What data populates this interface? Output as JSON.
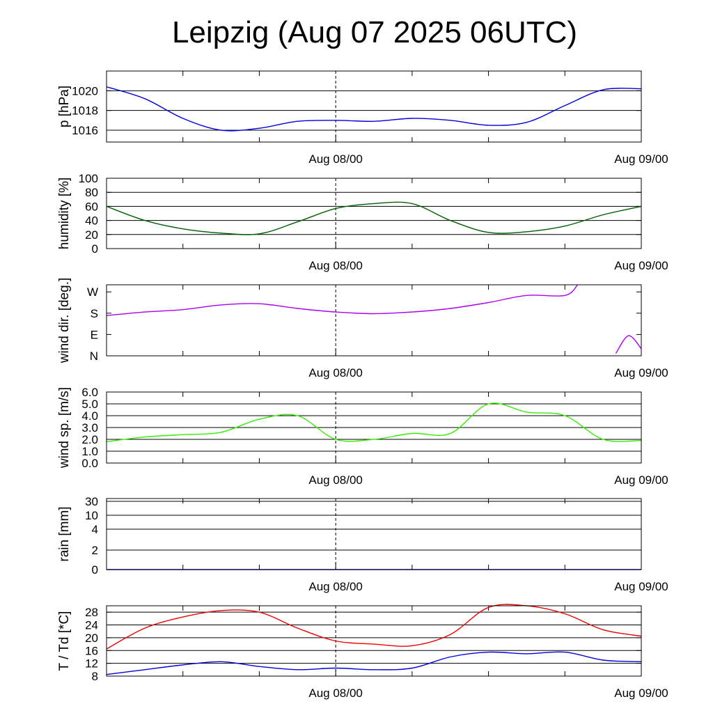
{
  "title": "Leipzig (Aug 07 2025 06UTC)",
  "x_tick_labels": [
    "Aug 08/00",
    "Aug 09/00"
  ],
  "chart_data": [
    {
      "type": "line",
      "ylabel": "p [hPa]",
      "ylim": [
        1014.8,
        1022
      ],
      "yticks": [
        1016,
        1018,
        1020
      ],
      "ytick_labels": [
        "1016",
        "1018",
        "1020"
      ],
      "grid": true,
      "x": [
        "Aug 07 06:00",
        "Aug 07 09:00",
        "Aug 07 12:00",
        "Aug 07 15:00",
        "Aug 07 18:00",
        "Aug 07 21:00",
        "Aug 08 00:00",
        "Aug 08 03:00",
        "Aug 08 06:00",
        "Aug 08 09:00",
        "Aug 08 12:00",
        "Aug 08 15:00",
        "Aug 08 18:00",
        "Aug 08 21:00",
        "Aug 09 00:00"
      ],
      "series": [
        {
          "color": "#0000dd",
          "values": [
            1020.4,
            1019.2,
            1017.2,
            1016.0,
            1016.2,
            1016.9,
            1017.0,
            1016.9,
            1017.2,
            1017.0,
            1016.5,
            1016.8,
            1018.5,
            1020.1,
            1020.2
          ]
        }
      ]
    },
    {
      "type": "line",
      "ylabel": "humidity [%]",
      "ylim": [
        0,
        100
      ],
      "yticks": [
        0,
        20,
        40,
        60,
        80,
        100
      ],
      "ytick_labels": [
        "0",
        "20",
        "40",
        "60",
        "80",
        "100"
      ],
      "grid": true,
      "x": [
        "Aug 07 06:00",
        "Aug 07 09:00",
        "Aug 07 12:00",
        "Aug 07 15:00",
        "Aug 07 18:00",
        "Aug 07 21:00",
        "Aug 08 00:00",
        "Aug 08 03:00",
        "Aug 08 06:00",
        "Aug 08 09:00",
        "Aug 08 12:00",
        "Aug 08 15:00",
        "Aug 08 18:00",
        "Aug 08 21:00",
        "Aug 09 00:00"
      ],
      "series": [
        {
          "color": "#005f00",
          "values": [
            60,
            40,
            28,
            22,
            21,
            38,
            57,
            64,
            64,
            40,
            23,
            24,
            32,
            48,
            60
          ]
        }
      ]
    },
    {
      "type": "line",
      "ylabel": "wind dir. [deg.]",
      "ylim": [
        0,
        300
      ],
      "yticks": [
        0,
        90,
        180,
        270
      ],
      "ytick_labels": [
        "N",
        "E",
        "S",
        "W"
      ],
      "grid": false,
      "x": [
        "Aug 07 06:00",
        "Aug 07 09:00",
        "Aug 07 12:00",
        "Aug 07 15:00",
        "Aug 07 18:00",
        "Aug 07 21:00",
        "Aug 08 00:00",
        "Aug 08 03:00",
        "Aug 08 06:00",
        "Aug 08 09:00",
        "Aug 08 12:00",
        "Aug 08 15:00",
        "Aug 08 18:00",
        "Aug 08 19:00",
        "Aug 08 21:00",
        "Aug 08 22:00",
        "Aug 08 23:00",
        "Aug 09 00:00"
      ],
      "series": [
        {
          "color": "#aa00ee",
          "values": [
            170,
            185,
            195,
            215,
            220,
            200,
            185,
            178,
            185,
            200,
            225,
            255,
            255,
            300,
            null,
            10,
            85,
            30
          ]
        }
      ]
    },
    {
      "type": "line",
      "ylabel": "wind sp. [m/s]",
      "ylim": [
        0,
        6
      ],
      "yticks": [
        0,
        1,
        2,
        3,
        4,
        5,
        6
      ],
      "ytick_labels": [
        "0.0",
        "1.0",
        "2.0",
        "3.0",
        "4.0",
        "5.0",
        "6.0"
      ],
      "grid": true,
      "x": [
        "Aug 07 06:00",
        "Aug 07 09:00",
        "Aug 07 12:00",
        "Aug 07 15:00",
        "Aug 07 18:00",
        "Aug 07 21:00",
        "Aug 08 00:00",
        "Aug 08 03:00",
        "Aug 08 06:00",
        "Aug 08 09:00",
        "Aug 08 12:00",
        "Aug 08 15:00",
        "Aug 08 18:00",
        "Aug 08 21:00",
        "Aug 09 00:00"
      ],
      "series": [
        {
          "color": "#33ee00",
          "values": [
            1.8,
            2.2,
            2.4,
            2.6,
            3.7,
            4.0,
            2.0,
            2.0,
            2.5,
            2.5,
            5.0,
            4.3,
            4.0,
            2.0,
            1.9
          ]
        }
      ]
    },
    {
      "type": "line",
      "ylabel": "rain [mm]",
      "ylim": [
        0,
        30
      ],
      "yticks": [
        0,
        2,
        4,
        10,
        30
      ],
      "ytick_labels": [
        "0",
        "2",
        "4",
        "10",
        "30"
      ],
      "grid": true,
      "x": [
        "Aug 07 06:00",
        "Aug 09 00:00"
      ],
      "series": [
        {
          "color": "#0000dd",
          "values": [
            0,
            0
          ]
        }
      ]
    },
    {
      "type": "line",
      "ylabel": "T / Td [*C]",
      "ylim": [
        8,
        30
      ],
      "yticks": [
        8,
        12,
        16,
        20,
        24,
        28
      ],
      "ytick_labels": [
        "8",
        "12",
        "16",
        "20",
        "24",
        "28"
      ],
      "grid": true,
      "x": [
        "Aug 07 06:00",
        "Aug 07 09:00",
        "Aug 07 12:00",
        "Aug 07 15:00",
        "Aug 07 18:00",
        "Aug 07 21:00",
        "Aug 08 00:00",
        "Aug 08 03:00",
        "Aug 08 06:00",
        "Aug 08 09:00",
        "Aug 08 12:00",
        "Aug 08 15:00",
        "Aug 08 18:00",
        "Aug 08 21:00",
        "Aug 09 00:00"
      ],
      "series": [
        {
          "color": "#ee0000",
          "values": [
            16.5,
            23.0,
            26.5,
            28.5,
            28.0,
            23.0,
            19.0,
            18.0,
            17.5,
            21.0,
            29.5,
            30.0,
            27.5,
            22.5,
            20.5
          ]
        },
        {
          "color": "#0000dd",
          "values": [
            8.5,
            10.0,
            11.5,
            12.5,
            11.0,
            10.0,
            10.5,
            10.0,
            10.5,
            14.0,
            15.5,
            15.0,
            15.5,
            13.0,
            12.5
          ]
        }
      ]
    }
  ]
}
